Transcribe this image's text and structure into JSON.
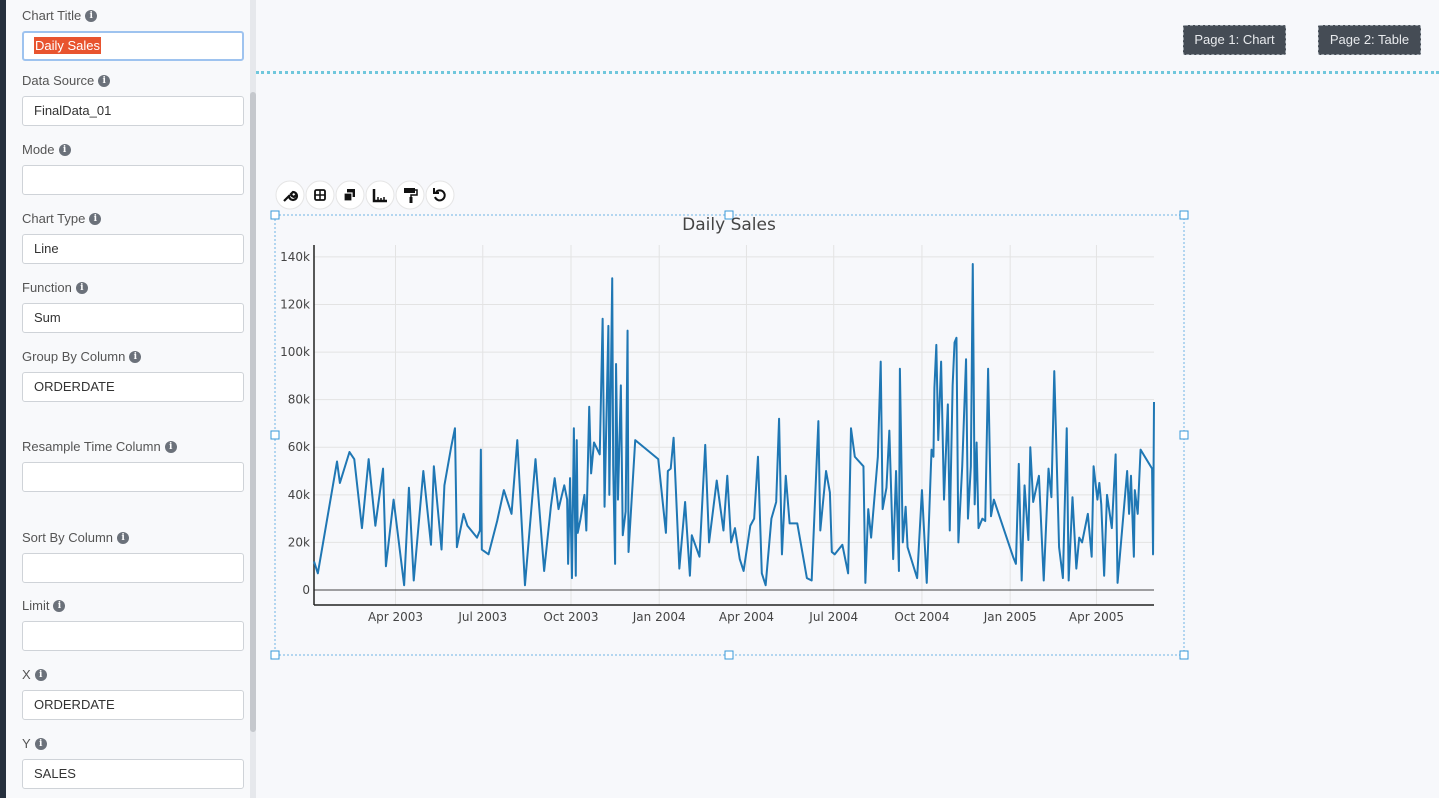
{
  "sidebar": {
    "fields": [
      {
        "label": "Chart Title",
        "value": "Daily Sales"
      },
      {
        "label": "Data Source",
        "value": "FinalData_01"
      },
      {
        "label": "Mode"
      },
      {
        "label": "Chart Type",
        "value": "Line"
      },
      {
        "label": "Function",
        "value": "Sum"
      },
      {
        "label": "Group By Column",
        "value": "ORDERDATE"
      },
      {
        "label": "Resample Time Column"
      },
      {
        "label": "Sort By Column"
      },
      {
        "label": "Limit"
      },
      {
        "label": "X",
        "value": "ORDERDATE"
      },
      {
        "label": "Y",
        "value": "SALES"
      }
    ]
  },
  "pages": [
    "Page 1: Chart",
    "Page 2: Table"
  ],
  "chart_data": {
    "type": "line",
    "title": "Daily Sales",
    "grid": true,
    "xlim": [
      "2003-01-06",
      "2005-05-31"
    ],
    "xticks": [
      {
        "value": "2003-04-01",
        "label": "Apr 2003"
      },
      {
        "value": "2003-07-01",
        "label": "Jul 2003"
      },
      {
        "value": "2003-10-01",
        "label": "Oct 2003"
      },
      {
        "value": "2004-01-01",
        "label": "Jan 2004"
      },
      {
        "value": "2004-04-01",
        "label": "Apr 2004"
      },
      {
        "value": "2004-07-01",
        "label": "Jul 2004"
      },
      {
        "value": "2004-10-01",
        "label": "Oct 2004"
      },
      {
        "value": "2005-01-01",
        "label": "Jan 2005"
      },
      {
        "value": "2005-04-01",
        "label": "Apr 2005"
      }
    ],
    "ylim": [
      -6300,
      145000
    ],
    "yticks": [
      0,
      {
        "value": 20000,
        "label": "20k"
      },
      {
        "value": 40000,
        "label": "40k"
      },
      {
        "value": 60000,
        "label": "60k"
      },
      {
        "value": 80000,
        "label": "80k"
      },
      {
        "value": 100000,
        "label": "100k"
      },
      {
        "value": 120000,
        "label": "120k"
      },
      {
        "value": 140000,
        "label": "140k"
      }
    ],
    "x": [
      "2003-01-06",
      "2003-01-10",
      "2003-01-30",
      "2003-02-02",
      "2003-02-12",
      "2003-02-17",
      "2003-02-25",
      "2003-03-04",
      "2003-03-11",
      "2003-03-19",
      "2003-03-22",
      "2003-03-24",
      "2003-03-30",
      "2003-04-10",
      "2003-04-15",
      "2003-04-20",
      "2003-04-30",
      "2003-05-08",
      "2003-05-11",
      "2003-05-19",
      "2003-05-22",
      "2003-05-29",
      "2003-06-02",
      "2003-06-04",
      "2003-06-11",
      "2003-06-15",
      "2003-06-25",
      "2003-06-28",
      "2003-06-29",
      "2003-06-30",
      "2003-07-07",
      "2003-07-16",
      "2003-07-23",
      "2003-07-31",
      "2003-08-06",
      "2003-08-14",
      "2003-08-25",
      "2003-09-03",
      "2003-09-10",
      "2003-09-14",
      "2003-09-18",
      "2003-09-24",
      "2003-09-27",
      "2003-09-28",
      "2003-09-30",
      "2003-10-02",
      "2003-10-04",
      "2003-10-06",
      "2003-10-07",
      "2003-10-08",
      "2003-10-11",
      "2003-10-15",
      "2003-10-17",
      "2003-10-20",
      "2003-10-22",
      "2003-10-25",
      "2003-10-31",
      "2003-11-03",
      "2003-11-05",
      "2003-11-09",
      "2003-11-10",
      "2003-11-13",
      "2003-11-14",
      "2003-11-16",
      "2003-11-17",
      "2003-11-19",
      "2003-11-22",
      "2003-11-24",
      "2003-11-27",
      "2003-11-29",
      "2003-11-30",
      "2003-12-07",
      "2003-12-31",
      "2004-01-08",
      "2004-01-10",
      "2004-01-13",
      "2004-01-16",
      "2004-01-22",
      "2004-01-28",
      "2004-02-02",
      "2004-02-04",
      "2004-02-12",
      "2004-02-18",
      "2004-02-22",
      "2004-03-01",
      "2004-03-08",
      "2004-03-12",
      "2004-03-16",
      "2004-03-20",
      "2004-03-25",
      "2004-03-29",
      "2004-04-05",
      "2004-04-09",
      "2004-04-13",
      "2004-04-17",
      "2004-04-21",
      "2004-04-27",
      "2004-05-02",
      "2004-05-05",
      "2004-05-08",
      "2004-05-12",
      "2004-05-16",
      "2004-05-24",
      "2004-06-03",
      "2004-06-08",
      "2004-06-15",
      "2004-06-17",
      "2004-06-23",
      "2004-06-27",
      "2004-06-29",
      "2004-07-02",
      "2004-07-10",
      "2004-07-16",
      "2004-07-19",
      "2004-07-23",
      "2004-08-01",
      "2004-08-03",
      "2004-08-06",
      "2004-08-09",
      "2004-08-16",
      "2004-08-19",
      "2004-08-21",
      "2004-08-25",
      "2004-08-28",
      "2004-09-01",
      "2004-09-04",
      "2004-09-07",
      "2004-09-08",
      "2004-09-11",
      "2004-09-14",
      "2004-09-16",
      "2004-09-26",
      "2004-10-01",
      "2004-10-06",
      "2004-10-11",
      "2004-10-13",
      "2004-10-14",
      "2004-10-16",
      "2004-10-18",
      "2004-10-21",
      "2004-10-24",
      "2004-10-28",
      "2004-10-30",
      "2004-11-02",
      "2004-11-04",
      "2004-11-06",
      "2004-11-08",
      "2004-11-12",
      "2004-11-16",
      "2004-11-18",
      "2004-11-21",
      "2004-11-23",
      "2004-11-25",
      "2004-11-27",
      "2004-11-29",
      "2004-12-03",
      "2004-12-06",
      "2004-12-09",
      "2004-12-12",
      "2004-12-15",
      "2005-01-04",
      "2005-01-07",
      "2005-01-10",
      "2005-01-13",
      "2005-01-16",
      "2005-01-20",
      "2005-01-22",
      "2005-01-25",
      "2005-01-31",
      "2005-02-05",
      "2005-02-10",
      "2005-02-13",
      "2005-02-16",
      "2005-02-21",
      "2005-02-25",
      "2005-03-01",
      "2005-03-03",
      "2005-03-07",
      "2005-03-11",
      "2005-03-14",
      "2005-03-17",
      "2005-03-23",
      "2005-03-27",
      "2005-03-29",
      "2005-04-02",
      "2005-04-04",
      "2005-04-06",
      "2005-04-09",
      "2005-04-12",
      "2005-04-17",
      "2005-04-21",
      "2005-04-23",
      "2005-05-03",
      "2005-05-05",
      "2005-05-07",
      "2005-05-10",
      "2005-05-11",
      "2005-05-14",
      "2005-05-17",
      "2005-05-29",
      "2005-05-30",
      "2005-05-31"
    ],
    "series": [
      {
        "name": "SALES",
        "color": "#1f77b4",
        "values": [
          12000,
          7000,
          54000,
          45000,
          58000,
          55000,
          26000,
          55000,
          27000,
          51000,
          10000,
          17000,
          38000,
          2000,
          43000,
          4000,
          50000,
          19000,
          52000,
          17000,
          44000,
          60000,
          68000,
          18000,
          32000,
          27000,
          22000,
          25000,
          59000,
          17000,
          15000,
          29000,
          42000,
          32000,
          63000,
          2000,
          55000,
          8000,
          35000,
          47000,
          34000,
          44000,
          38000,
          11000,
          47000,
          5000,
          68000,
          6000,
          63000,
          24000,
          30000,
          40000,
          25000,
          77000,
          49000,
          62000,
          57000,
          114000,
          35000,
          111000,
          40000,
          131000,
          52000,
          11000,
          95000,
          38000,
          86000,
          23000,
          33000,
          109000,
          16000,
          63000,
          55000,
          24000,
          50000,
          51000,
          64000,
          9000,
          37000,
          6000,
          23000,
          14000,
          61000,
          20000,
          46000,
          25000,
          48000,
          20000,
          26000,
          13000,
          8000,
          27000,
          30000,
          56000,
          7000,
          2000,
          30000,
          37000,
          72000,
          15000,
          48000,
          28000,
          28000,
          5000,
          4000,
          71000,
          25000,
          50000,
          41000,
          16000,
          15000,
          19000,
          7000,
          68000,
          56000,
          52000,
          3000,
          34000,
          22000,
          56000,
          96000,
          34000,
          43000,
          67000,
          13000,
          50000,
          8000,
          93000,
          20000,
          35000,
          18000,
          5000,
          42000,
          3000,
          59000,
          56000,
          85000,
          103000,
          63000,
          96000,
          38000,
          78000,
          25000,
          86000,
          104000,
          106000,
          20000,
          52000,
          97000,
          30000,
          52000,
          137000,
          36000,
          62000,
          26000,
          30000,
          29000,
          93000,
          31000,
          38000,
          14000,
          11000,
          53000,
          4000,
          44000,
          21000,
          60000,
          37000,
          48000,
          4000,
          51000,
          39000,
          92000,
          18000,
          5000,
          68000,
          4000,
          39000,
          9000,
          22000,
          20000,
          32000,
          14000,
          52000,
          38000,
          45000,
          36000,
          6000,
          40000,
          26000,
          57000,
          3000,
          50000,
          32000,
          48000,
          14000,
          42000,
          32000,
          59000,
          51000,
          15000,
          79000
        ]
      }
    ]
  }
}
